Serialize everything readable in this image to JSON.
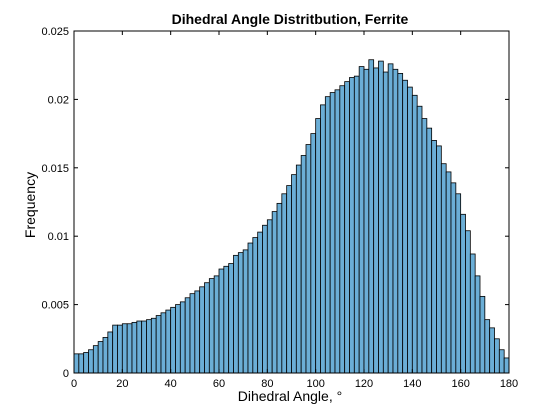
{
  "chart_data": {
    "type": "bar",
    "title": "Dihedral Angle Distritbution, Ferrite",
    "xlabel": "Dihedral Angle, °",
    "ylabel": "Frequency",
    "xlim": [
      0,
      180
    ],
    "ylim": [
      0,
      0.025
    ],
    "xticks": [
      0,
      20,
      40,
      60,
      80,
      100,
      120,
      140,
      160,
      180
    ],
    "yticks": [
      0,
      0.005,
      0.01,
      0.015,
      0.02,
      0.025
    ],
    "xtick_labels": [
      "0",
      "20",
      "40",
      "60",
      "80",
      "100",
      "120",
      "140",
      "160",
      "180"
    ],
    "ytick_labels": [
      "0",
      "0.005",
      "0.01",
      "0.015",
      "0.02",
      "0.025"
    ],
    "bin_width": 2,
    "x": [
      1,
      3,
      5,
      7,
      9,
      11,
      13,
      15,
      17,
      19,
      21,
      23,
      25,
      27,
      29,
      31,
      33,
      35,
      37,
      39,
      41,
      43,
      45,
      47,
      49,
      51,
      53,
      55,
      57,
      59,
      61,
      63,
      65,
      67,
      69,
      71,
      73,
      75,
      77,
      79,
      81,
      83,
      85,
      87,
      89,
      91,
      93,
      95,
      97,
      99,
      101,
      103,
      105,
      107,
      109,
      111,
      113,
      115,
      117,
      119,
      121,
      123,
      125,
      127,
      129,
      131,
      133,
      135,
      137,
      139,
      141,
      143,
      145,
      147,
      149,
      151,
      153,
      155,
      157,
      159,
      161,
      163,
      165,
      167,
      169,
      171,
      173,
      175,
      177,
      179
    ],
    "values": [
      0.0014,
      0.0014,
      0.0015,
      0.0017,
      0.002,
      0.0023,
      0.0026,
      0.003,
      0.0035,
      0.0035,
      0.0036,
      0.0036,
      0.0037,
      0.0038,
      0.0038,
      0.0039,
      0.004,
      0.0042,
      0.0044,
      0.0046,
      0.0048,
      0.005,
      0.0052,
      0.0055,
      0.0058,
      0.006,
      0.0063,
      0.0066,
      0.0069,
      0.0071,
      0.0076,
      0.0078,
      0.008,
      0.0086,
      0.0088,
      0.009,
      0.0095,
      0.0099,
      0.0103,
      0.0108,
      0.0112,
      0.0118,
      0.0124,
      0.0131,
      0.0137,
      0.0145,
      0.0152,
      0.0159,
      0.0167,
      0.0175,
      0.0186,
      0.0196,
      0.0202,
      0.0205,
      0.0207,
      0.021,
      0.0213,
      0.0216,
      0.0217,
      0.0224,
      0.0222,
      0.0229,
      0.0223,
      0.0228,
      0.022,
      0.0226,
      0.0222,
      0.0219,
      0.0214,
      0.0209,
      0.0203,
      0.0195,
      0.0186,
      0.0179,
      0.017,
      0.0166,
      0.0153,
      0.0147,
      0.0139,
      0.0131,
      0.0116,
      0.0104,
      0.0087,
      0.0071,
      0.0056,
      0.0039,
      0.0033,
      0.0025,
      0.0017,
      0.0011
    ],
    "bar_color": "#6baed6",
    "edge_color": "#000000",
    "grid": false,
    "legend": "none"
  }
}
